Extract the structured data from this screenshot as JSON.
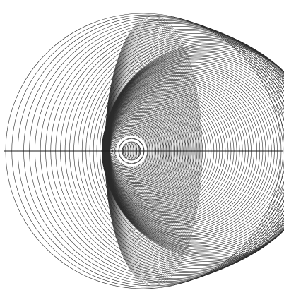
{
  "figure": {
    "background_color": "#ffffff",
    "line_color": "#2b2b2b",
    "axis_color": "#1a1a1a",
    "ring_count": 96,
    "outer_ring_only_fraction": 0.22,
    "charge_offset_ratio": 0.16,
    "inner_circle_count": 2,
    "has_horizontal_axis": true
  }
}
